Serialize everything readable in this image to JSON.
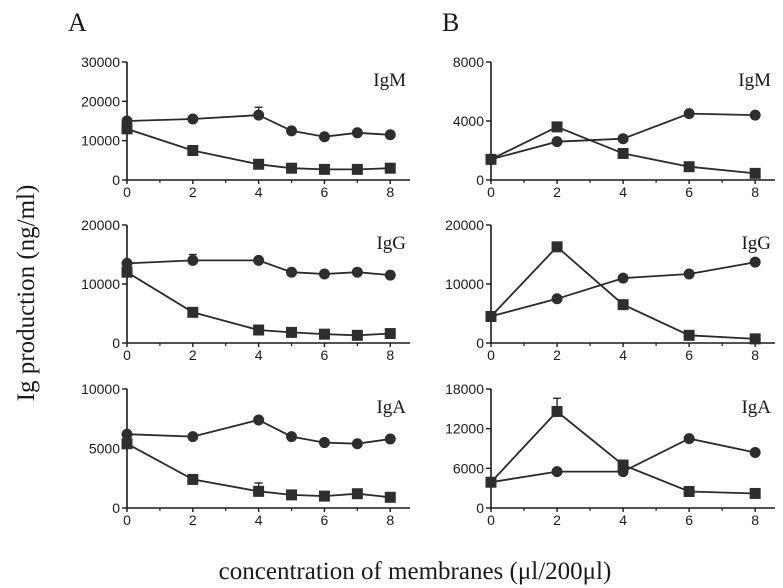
{
  "figure": {
    "panel_letters": [
      "A",
      "B"
    ],
    "y_title": "Ig production  (ng/ml)",
    "x_title": "concentration of membranes (μl/200μl)"
  },
  "chart_data": [
    {
      "type": "line",
      "panel": "A",
      "title": "IgM",
      "xlim": [
        0,
        8.6
      ],
      "xticks": [
        0,
        2,
        4,
        6,
        8
      ],
      "ylim": [
        0,
        30000
      ],
      "yticks": [
        0,
        10000,
        20000,
        30000
      ],
      "series": [
        {
          "marker": "circle",
          "x": [
            0,
            2,
            4,
            5,
            6,
            7,
            8
          ],
          "y": [
            15000,
            15500,
            16500,
            12500,
            11000,
            12000,
            11500
          ],
          "err": [
            0,
            0,
            2000,
            0,
            0,
            0,
            0
          ]
        },
        {
          "marker": "square",
          "x": [
            0,
            2,
            4,
            5,
            6,
            7,
            8
          ],
          "y": [
            13000,
            7500,
            4000,
            3000,
            2700,
            2700,
            3000
          ]
        }
      ]
    },
    {
      "type": "line",
      "panel": "B",
      "title": "IgM",
      "xlim": [
        0,
        8.6
      ],
      "xticks": [
        0,
        2,
        4,
        6,
        8
      ],
      "ylim": [
        0,
        8000
      ],
      "yticks": [
        0,
        4000,
        8000
      ],
      "series": [
        {
          "marker": "circle",
          "x": [
            0,
            2,
            4,
            6,
            8
          ],
          "y": [
            1400,
            2600,
            2800,
            4500,
            4400
          ]
        },
        {
          "marker": "square",
          "x": [
            0,
            2,
            4,
            6,
            8
          ],
          "y": [
            1400,
            3600,
            1800,
            900,
            450
          ]
        }
      ]
    },
    {
      "type": "line",
      "panel": "A",
      "title": "IgG",
      "xlim": [
        0,
        8.6
      ],
      "xticks": [
        0,
        2,
        4,
        6,
        8
      ],
      "ylim": [
        0,
        20000
      ],
      "yticks": [
        0,
        10000,
        20000
      ],
      "series": [
        {
          "marker": "circle",
          "x": [
            0,
            2,
            4,
            5,
            6,
            7,
            8
          ],
          "y": [
            13500,
            14000,
            14000,
            12000,
            11700,
            12000,
            11500
          ],
          "err": [
            0,
            1000,
            0,
            0,
            0,
            0,
            0
          ]
        },
        {
          "marker": "square",
          "x": [
            0,
            2,
            4,
            5,
            6,
            7,
            8
          ],
          "y": [
            12000,
            5200,
            2200,
            1800,
            1500,
            1300,
            1600
          ]
        }
      ]
    },
    {
      "type": "line",
      "panel": "B",
      "title": "IgG",
      "xlim": [
        0,
        8.6
      ],
      "xticks": [
        0,
        2,
        4,
        6,
        8
      ],
      "ylim": [
        0,
        20000
      ],
      "yticks": [
        0,
        10000,
        20000
      ],
      "series": [
        {
          "marker": "circle",
          "x": [
            0,
            2,
            4,
            6,
            8
          ],
          "y": [
            4500,
            7500,
            11000,
            11700,
            13700
          ]
        },
        {
          "marker": "square",
          "x": [
            0,
            2,
            4,
            6,
            8
          ],
          "y": [
            4500,
            16300,
            6500,
            1300,
            700
          ]
        }
      ]
    },
    {
      "type": "line",
      "panel": "A",
      "title": "IgA",
      "xlim": [
        0,
        8.6
      ],
      "xticks": [
        0,
        2,
        4,
        6,
        8
      ],
      "ylim": [
        0,
        10000
      ],
      "yticks": [
        0,
        5000,
        10000
      ],
      "series": [
        {
          "marker": "circle",
          "x": [
            0,
            2,
            4,
            5,
            6,
            7,
            8
          ],
          "y": [
            6200,
            6000,
            7400,
            6000,
            5500,
            5400,
            5800
          ]
        },
        {
          "marker": "square",
          "x": [
            0,
            2,
            4,
            5,
            6,
            7,
            8
          ],
          "y": [
            5400,
            2400,
            1400,
            1100,
            1000,
            1200,
            900
          ],
          "err": [
            0,
            0,
            700,
            0,
            0,
            0,
            0
          ]
        }
      ]
    },
    {
      "type": "line",
      "panel": "B",
      "title": "IgA",
      "xlim": [
        0,
        8.6
      ],
      "xticks": [
        0,
        2,
        4,
        6,
        8
      ],
      "ylim": [
        0,
        18000
      ],
      "yticks": [
        0,
        6000,
        12000,
        18000
      ],
      "series": [
        {
          "marker": "circle",
          "x": [
            0,
            2,
            4,
            6,
            8
          ],
          "y": [
            3900,
            5500,
            5500,
            10500,
            8400
          ]
        },
        {
          "marker": "square",
          "x": [
            0,
            2,
            4,
            6,
            8
          ],
          "y": [
            3900,
            14600,
            6500,
            2500,
            2200
          ],
          "err": [
            0,
            2000,
            0,
            0,
            0
          ]
        }
      ]
    }
  ]
}
